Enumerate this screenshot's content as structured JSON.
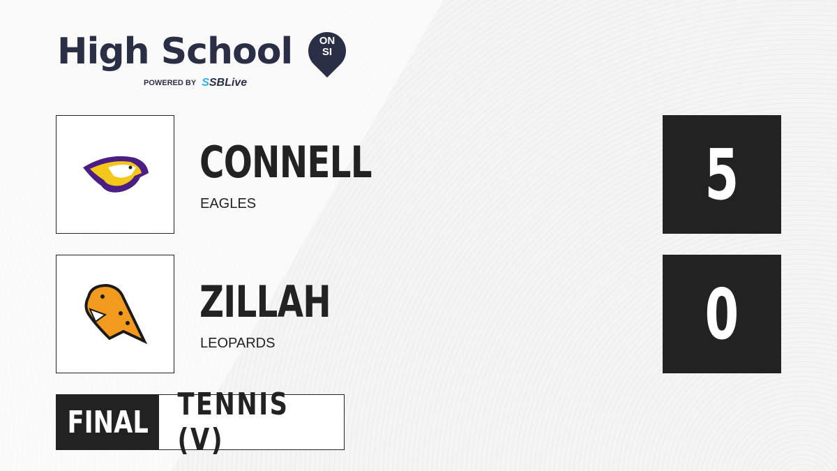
{
  "brand": {
    "title": "High School",
    "badge_top": "ON",
    "badge_bottom": "SI",
    "powered_by": "POWERED BY",
    "partner_a": "SBL",
    "partner_b": "ive",
    "partner_prefix": "S"
  },
  "teams": [
    {
      "name": "CONNELL",
      "mascot": "EAGLES",
      "score": "5",
      "logo": "eagle-logo"
    },
    {
      "name": "ZILLAH",
      "mascot": "LEOPARDS",
      "score": "0",
      "logo": "leopard-logo"
    }
  ],
  "game": {
    "status": "FINAL",
    "sport": "TENNIS (V)"
  },
  "colors": {
    "dark": "#222222",
    "navy": "#2b2f45",
    "accent": "#2bb0e8"
  }
}
